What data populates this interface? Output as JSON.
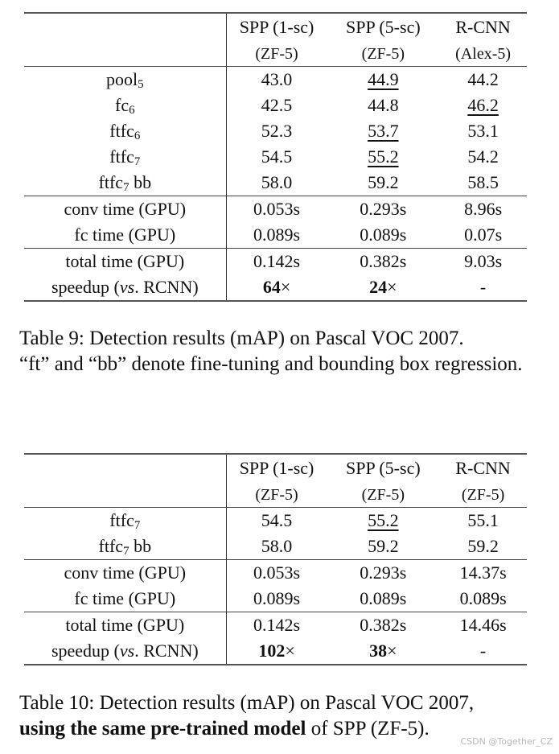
{
  "table9": {
    "columns": [
      {
        "name": "SPP (1-sc)",
        "model": "(ZF-5)"
      },
      {
        "name": "SPP (5-sc)",
        "model": "(ZF-5)"
      },
      {
        "name": "R-CNN",
        "model": "(Alex-5)"
      }
    ],
    "rows": [
      {
        "label": "pool",
        "sub": "5",
        "suffix": "",
        "values": [
          "43.0",
          "44.9",
          "44.2"
        ],
        "underline": [
          false,
          true,
          false
        ],
        "bold": [
          false,
          false,
          false
        ]
      },
      {
        "label": "fc",
        "sub": "6",
        "suffix": "",
        "values": [
          "42.5",
          "44.8",
          "46.2"
        ],
        "underline": [
          false,
          false,
          true
        ],
        "bold": [
          false,
          false,
          false
        ]
      },
      {
        "label": "ftfc",
        "sub": "6",
        "suffix": "",
        "values": [
          "52.3",
          "53.7",
          "53.1"
        ],
        "underline": [
          false,
          true,
          false
        ],
        "bold": [
          false,
          false,
          false
        ]
      },
      {
        "label": "ftfc",
        "sub": "7",
        "suffix": "",
        "values": [
          "54.5",
          "55.2",
          "54.2"
        ],
        "underline": [
          false,
          true,
          false
        ],
        "bold": [
          false,
          false,
          false
        ]
      },
      {
        "label": "ftfc",
        "sub": "7",
        "suffix": " bb",
        "values": [
          "58.0",
          "59.2",
          "58.5"
        ],
        "underline": [
          false,
          false,
          false
        ],
        "bold": [
          false,
          true,
          false
        ]
      },
      {
        "label": "conv time (GPU)",
        "values": [
          "0.053s",
          "0.293s",
          "8.96s"
        ]
      },
      {
        "label": "fc time (GPU)",
        "values": [
          "0.089s",
          "0.089s",
          "0.07s"
        ]
      },
      {
        "label": "total time (GPU)",
        "values": [
          "0.142s",
          "0.382s",
          "9.03s"
        ]
      },
      {
        "label_pre": "speedup (",
        "label_em": "vs",
        "label_post": ". RCNN)",
        "values": [
          "64",
          "24",
          "-"
        ],
        "times": "×"
      }
    ],
    "caption": {
      "line1": "Table 9: Detection results (mAP) on Pascal VOC 2007.",
      "line2": "“ft” and “bb” denote fine-tuning and bounding box regression."
    }
  },
  "table10": {
    "columns": [
      {
        "name": "SPP (1-sc)",
        "model": "(ZF-5)"
      },
      {
        "name": "SPP (5-sc)",
        "model": "(ZF-5)"
      },
      {
        "name": "R-CNN",
        "model": "(ZF-5)"
      }
    ],
    "rows": [
      {
        "label": "ftfc",
        "sub": "7",
        "suffix": "",
        "values": [
          "54.5",
          "55.2",
          "55.1"
        ]
      },
      {
        "label": "ftfc",
        "sub": "7",
        "suffix": " bb",
        "values": [
          "58.0",
          "59.2",
          "59.2"
        ]
      },
      {
        "label": "conv time (GPU)",
        "values": [
          "0.053s",
          "0.293s",
          "14.37s"
        ]
      },
      {
        "label": "fc time (GPU)",
        "values": [
          "0.089s",
          "0.089s",
          "0.089s"
        ]
      },
      {
        "label": "total time (GPU)",
        "values": [
          "0.142s",
          "0.382s",
          "14.46s"
        ]
      },
      {
        "label_pre": "speedup (",
        "label_em": "vs",
        "label_post": ". RCNN)",
        "values": [
          "102",
          "38",
          "-"
        ],
        "times": "×"
      }
    ],
    "caption": {
      "line1": "Table 10: Detection results (mAP) on Pascal VOC 2007,",
      "bold": "using the same pre-trained model",
      "rest": " of SPP (ZF-5)."
    }
  },
  "watermark": "CSDN @Together_CZ"
}
